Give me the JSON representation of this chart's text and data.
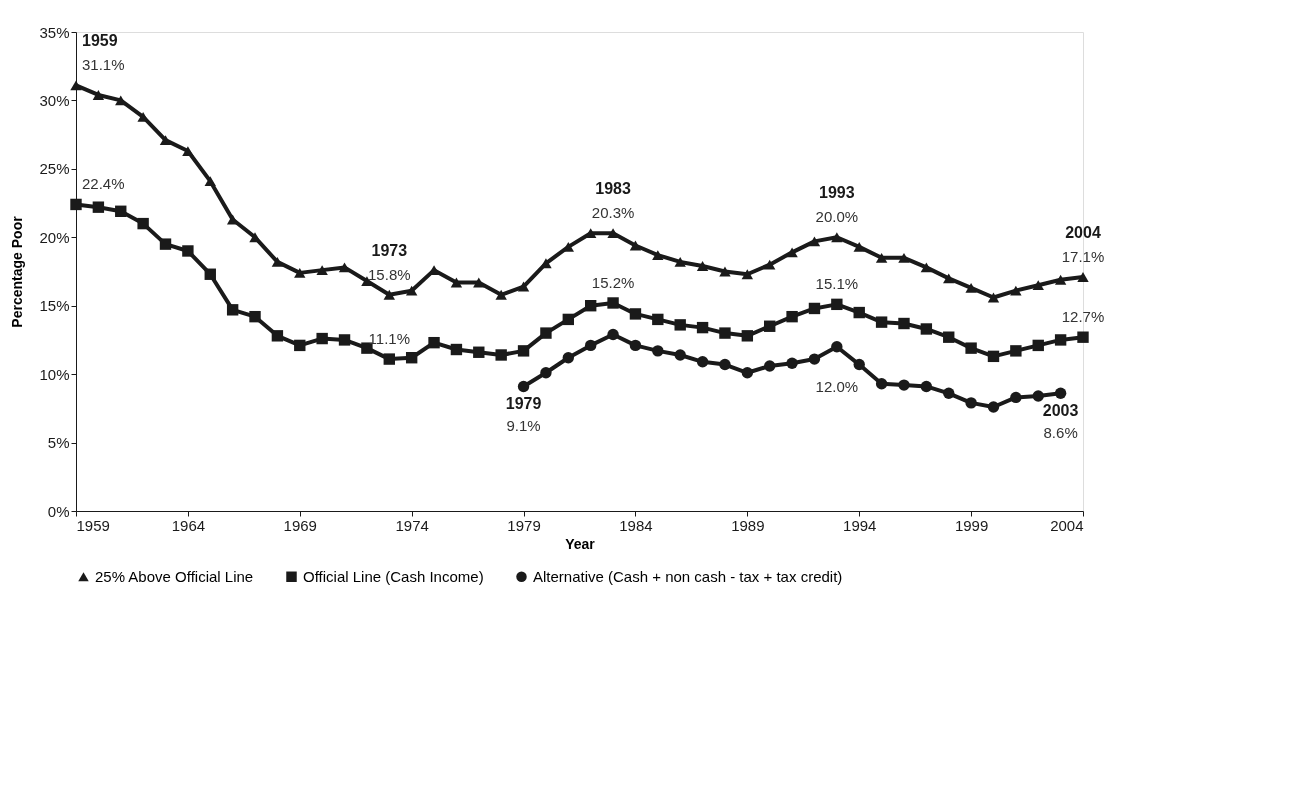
{
  "chart_data": {
    "type": "line",
    "xlabel": "Year",
    "ylabel": "Percentage Poor",
    "x": [
      1959,
      1960,
      1961,
      1962,
      1963,
      1964,
      1965,
      1966,
      1967,
      1968,
      1969,
      1970,
      1971,
      1972,
      1973,
      1974,
      1975,
      1976,
      1977,
      1978,
      1979,
      1980,
      1981,
      1982,
      1983,
      1984,
      1985,
      1986,
      1987,
      1988,
      1989,
      1990,
      1991,
      1992,
      1993,
      1994,
      1995,
      1996,
      1997,
      1998,
      1999,
      2000,
      2001,
      2002,
      2003,
      2004
    ],
    "series": [
      {
        "name": "25% Above Official Line",
        "color": "#1a1a1a",
        "marker": "triangle",
        "values": [
          31.1,
          30.4,
          30.0,
          28.8,
          27.1,
          26.3,
          24.1,
          21.3,
          20.0,
          18.2,
          17.4,
          17.6,
          17.8,
          16.8,
          15.8,
          16.1,
          17.6,
          16.7,
          16.7,
          15.8,
          16.4,
          18.1,
          19.3,
          20.3,
          20.3,
          19.4,
          18.7,
          18.2,
          17.9,
          17.5,
          17.3,
          18.0,
          18.9,
          19.7,
          20.0,
          19.3,
          18.5,
          18.5,
          17.8,
          17.0,
          16.3,
          15.6,
          16.1,
          16.5,
          16.9,
          17.1
        ],
        "value_labels": [
          "31.1%",
          null,
          null,
          null,
          null,
          null,
          null,
          null,
          null,
          null,
          null,
          null,
          null,
          null,
          "15.8%",
          null,
          null,
          null,
          null,
          null,
          null,
          null,
          null,
          null,
          "20.3%",
          null,
          null,
          null,
          null,
          null,
          null,
          null,
          null,
          null,
          "20.0%",
          null,
          null,
          null,
          null,
          null,
          null,
          null,
          null,
          null,
          null,
          "17.1%"
        ]
      },
      {
        "name": "Official Line (Cash Income)",
        "color": "#1a1a1a",
        "marker": "square",
        "values": [
          22.4,
          22.2,
          21.9,
          21.0,
          19.5,
          19.0,
          17.3,
          14.7,
          14.2,
          12.8,
          12.1,
          12.6,
          12.5,
          11.9,
          11.1,
          11.2,
          12.3,
          11.8,
          11.6,
          11.4,
          11.7,
          13.0,
          14.0,
          15.0,
          15.2,
          14.4,
          14.0,
          13.6,
          13.4,
          13.0,
          12.8,
          13.5,
          14.2,
          14.8,
          15.1,
          14.5,
          13.8,
          13.7,
          13.3,
          12.7,
          11.9,
          11.3,
          11.7,
          12.1,
          12.5,
          12.7
        ],
        "value_labels": [
          "22.4%",
          null,
          null,
          null,
          null,
          null,
          null,
          null,
          null,
          null,
          null,
          null,
          null,
          null,
          "11.1%",
          null,
          null,
          null,
          null,
          null,
          null,
          null,
          null,
          null,
          "15.2%",
          null,
          null,
          null,
          null,
          null,
          null,
          null,
          null,
          null,
          "15.1%",
          null,
          null,
          null,
          null,
          null,
          null,
          null,
          null,
          null,
          null,
          "12.7%"
        ]
      },
      {
        "name": "Alternative (Cash + non cash - tax + tax credit)",
        "color": "#1a1a1a",
        "marker": "circle",
        "values": [
          null,
          null,
          null,
          null,
          null,
          null,
          null,
          null,
          null,
          null,
          null,
          null,
          null,
          null,
          null,
          null,
          null,
          null,
          null,
          null,
          9.1,
          10.1,
          11.2,
          12.1,
          12.9,
          12.1,
          11.7,
          11.4,
          10.9,
          10.7,
          10.1,
          10.6,
          10.8,
          11.1,
          12.0,
          10.7,
          9.3,
          9.2,
          9.1,
          8.6,
          7.9,
          7.6,
          8.3,
          8.4,
          8.6,
          null
        ],
        "value_labels": [
          null,
          null,
          null,
          null,
          null,
          null,
          null,
          null,
          null,
          null,
          null,
          null,
          null,
          null,
          null,
          null,
          null,
          null,
          null,
          null,
          "9.1%",
          null,
          null,
          null,
          null,
          null,
          null,
          null,
          null,
          null,
          null,
          null,
          null,
          null,
          "12.0%",
          null,
          null,
          null,
          null,
          null,
          null,
          null,
          null,
          null,
          "8.6%",
          null
        ]
      }
    ],
    "annotations": [
      {
        "text": "1959",
        "x": 1959,
        "y": 31.1
      },
      {
        "text": "1973",
        "x": 1973,
        "y": 15.8
      },
      {
        "text": "1983",
        "x": 1983,
        "y": 20.3
      },
      {
        "text": "1993",
        "x": 1993,
        "y": 20.0
      },
      {
        "text": "2004",
        "x": 2004,
        "y": 17.1
      },
      {
        "text": "1979",
        "x": 1979,
        "y": 9.1
      },
      {
        "text": "2003",
        "x": 2003,
        "y": 8.6
      }
    ],
    "xlim": [
      1959,
      2004
    ],
    "xticks": [
      1959,
      1964,
      1969,
      1974,
      1979,
      1984,
      1989,
      1994,
      1999,
      2004
    ],
    "ylim": [
      0,
      35
    ],
    "yticks": [
      {
        "value": 0,
        "label": "0%"
      },
      {
        "value": 5,
        "label": "5%"
      },
      {
        "value": 10,
        "label": "10%"
      },
      {
        "value": 15,
        "label": "15%"
      },
      {
        "value": 20,
        "label": "20%"
      },
      {
        "value": 25,
        "label": "25%"
      },
      {
        "value": 30,
        "label": "30%"
      },
      {
        "value": 35,
        "label": "35%"
      }
    ],
    "grid": false,
    "legend": "bottom",
    "line_style": "solid"
  }
}
